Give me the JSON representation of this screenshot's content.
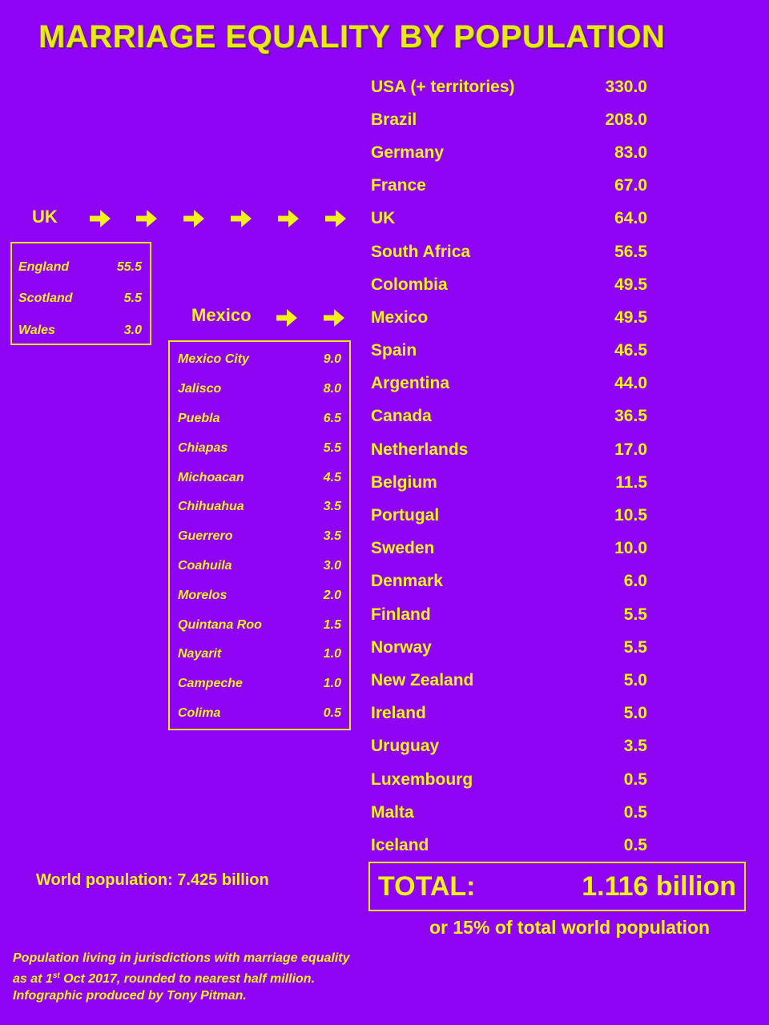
{
  "title": "MARRIAGE EQUALITY BY POPULATION",
  "countries": [
    {
      "name": "USA (+ territories)",
      "value": "330.0"
    },
    {
      "name": "Brazil",
      "value": "208.0"
    },
    {
      "name": "Germany",
      "value": "83.0"
    },
    {
      "name": "France",
      "value": "67.0"
    },
    {
      "name": "UK",
      "value": "64.0"
    },
    {
      "name": "South Africa",
      "value": "56.5"
    },
    {
      "name": "Colombia",
      "value": "49.5"
    },
    {
      "name": "Mexico",
      "value": "49.5"
    },
    {
      "name": "Spain",
      "value": "46.5"
    },
    {
      "name": "Argentina",
      "value": "44.0"
    },
    {
      "name": "Canada",
      "value": "36.5"
    },
    {
      "name": "Netherlands",
      "value": "17.0"
    },
    {
      "name": "Belgium",
      "value": "11.5"
    },
    {
      "name": "Portugal",
      "value": "10.5"
    },
    {
      "name": "Sweden",
      "value": "10.0"
    },
    {
      "name": "Denmark",
      "value": "6.0"
    },
    {
      "name": "Finland",
      "value": "5.5"
    },
    {
      "name": "Norway",
      "value": "5.5"
    },
    {
      "name": "New Zealand",
      "value": "5.0"
    },
    {
      "name": "Ireland",
      "value": "5.0"
    },
    {
      "name": "Uruguay",
      "value": "3.5"
    },
    {
      "name": "Luxembourg",
      "value": "0.5"
    },
    {
      "name": "Malta",
      "value": "0.5"
    },
    {
      "name": "Iceland",
      "value": "0.5"
    }
  ],
  "uk": {
    "label": "UK",
    "parts": [
      {
        "name": "England",
        "value": "55.5"
      },
      {
        "name": "Scotland",
        "value": "5.5"
      },
      {
        "name": "Wales",
        "value": "3.0"
      }
    ]
  },
  "mexico": {
    "label": "Mexico",
    "states": [
      {
        "name": "Mexico City",
        "value": "9.0"
      },
      {
        "name": "Jalisco",
        "value": "8.0"
      },
      {
        "name": "Puebla",
        "value": "6.5"
      },
      {
        "name": "Chiapas",
        "value": "5.5"
      },
      {
        "name": "Michoacan",
        "value": "4.5"
      },
      {
        "name": "Chihuahua",
        "value": "3.5"
      },
      {
        "name": "Guerrero",
        "value": "3.5"
      },
      {
        "name": "Coahuila",
        "value": "3.0"
      },
      {
        "name": "Morelos",
        "value": "2.0"
      },
      {
        "name": "Quintana Roo",
        "value": "1.5"
      },
      {
        "name": "Nayarit",
        "value": "1.0"
      },
      {
        "name": "Campeche",
        "value": "1.0"
      },
      {
        "name": "Colima",
        "value": "0.5"
      }
    ]
  },
  "world_population": "World population: 7.425 billion",
  "total": {
    "label": "TOTAL:",
    "value": "1.116 billion"
  },
  "percentage": "or 15% of total world population",
  "footnote": {
    "line1": "Population living in jurisdictions with marriage equality",
    "line2_pre": "as at 1",
    "line2_sup": "st",
    "line2_post": " Oct 2017, rounded to nearest half million.",
    "line3": "Infographic produced by Tony Pitman."
  },
  "colors": {
    "background": "#8f04f5",
    "text": "#f2f21a"
  }
}
